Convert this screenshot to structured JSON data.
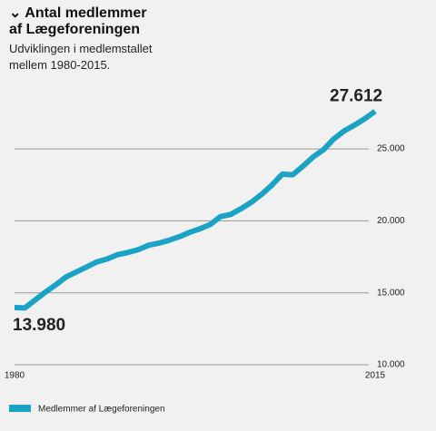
{
  "chart_data": {
    "type": "line",
    "title": "Antal medlemmer af Lægeforeningen",
    "subtitle": "Udviklingen i medlemstallet mellem 1980-2015.",
    "x": [
      1980,
      1981,
      1982,
      1983,
      1984,
      1985,
      1986,
      1987,
      1988,
      1989,
      1990,
      1991,
      1992,
      1993,
      1994,
      1995,
      1996,
      1997,
      1998,
      1999,
      2000,
      2001,
      2002,
      2003,
      2004,
      2005,
      2006,
      2007,
      2008,
      2009,
      2010,
      2011,
      2012,
      2013,
      2014,
      2015
    ],
    "series": [
      {
        "name": "Medlemmer af Lægeforeningen",
        "color": "#1ba3c6",
        "values": [
          13980,
          13950,
          14500,
          15050,
          15550,
          16100,
          16450,
          16800,
          17150,
          17350,
          17650,
          17800,
          18000,
          18300,
          18450,
          18650,
          18900,
          19200,
          19450,
          19750,
          20300,
          20450,
          20850,
          21300,
          21850,
          22500,
          23250,
          23200,
          23800,
          24450,
          24950,
          25700,
          26250,
          26650,
          27100,
          27612
        ],
        "value_labels": [
          "13.980",
          null,
          null,
          null,
          null,
          null,
          null,
          null,
          null,
          null,
          null,
          null,
          null,
          null,
          null,
          null,
          null,
          null,
          null,
          null,
          null,
          null,
          null,
          null,
          null,
          null,
          null,
          null,
          null,
          null,
          null,
          null,
          null,
          null,
          null,
          "27.612"
        ]
      }
    ],
    "xlim": [
      1980,
      2015
    ],
    "xticks": [
      1980,
      2015
    ],
    "ylim": [
      10000,
      28000
    ],
    "yticks": [
      {
        "value": 10000,
        "label": "10.000"
      },
      {
        "value": 15000,
        "label": "15.000"
      },
      {
        "value": 20000,
        "label": "20.000"
      },
      {
        "value": 25000,
        "label": "25.000"
      }
    ],
    "grid": true
  }
}
